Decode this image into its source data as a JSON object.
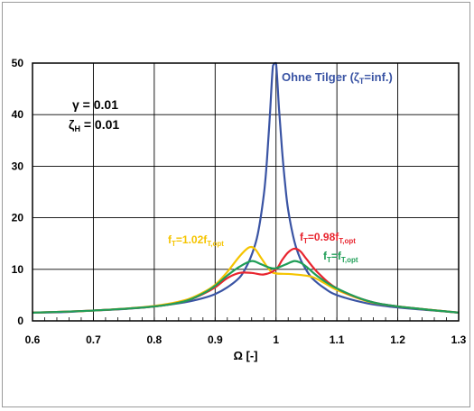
{
  "chart_data": {
    "type": "line",
    "title": "",
    "xlabel": "Ω [-]",
    "ylabel": "",
    "xlim": [
      0.6,
      1.3
    ],
    "ylim": [
      0,
      50
    ],
    "x_ticks": [
      "0.6",
      "0.7",
      "0.8",
      "0.9",
      "1",
      "1.1",
      "1.2",
      "1.3"
    ],
    "y_ticks": [
      "0",
      "10",
      "20",
      "30",
      "40",
      "50"
    ],
    "grid": true,
    "params": {
      "gamma": "γ = 0.01",
      "zeta": "ζ",
      "zeta_sub": "H",
      "zeta_val": " = 0.01"
    },
    "series": [
      {
        "name": "Ohne Tilger (ζT=inf.)",
        "label": {
          "main": "Ohne Tilger (ζ",
          "sub": "T",
          "tail": "=inf.)"
        },
        "color": "#3a54a4",
        "x": [
          0.6,
          0.65,
          0.7,
          0.75,
          0.8,
          0.85,
          0.88,
          0.9,
          0.92,
          0.94,
          0.95,
          0.96,
          0.97,
          0.98,
          0.985,
          0.99,
          0.995,
          1.0,
          1.005,
          1.01,
          1.015,
          1.02,
          1.03,
          1.04,
          1.05,
          1.06,
          1.08,
          1.1,
          1.15,
          1.2,
          1.25,
          1.3
        ],
        "y": [
          1.6,
          1.7,
          2.0,
          2.3,
          2.8,
          3.6,
          4.4,
          5.2,
          6.5,
          8.4,
          10.2,
          12.8,
          16.8,
          24.5,
          31.0,
          40.0,
          49.5,
          50.0,
          41.0,
          33.0,
          26.5,
          21.5,
          15.5,
          12.0,
          9.8,
          8.2,
          6.3,
          5.0,
          3.4,
          2.6,
          2.1,
          1.6
        ]
      },
      {
        "name": "fT=1.02fT,opt",
        "label": {
          "main": "f",
          "sub": "T",
          "tail": "=1.02f",
          "sub2": "T,opt"
        },
        "color": "#f5c400",
        "x": [
          0.6,
          0.7,
          0.8,
          0.85,
          0.88,
          0.9,
          0.92,
          0.94,
          0.955,
          0.965,
          0.975,
          0.99,
          1.0,
          1.02,
          1.04,
          1.06,
          1.08,
          1.1,
          1.15,
          1.2,
          1.3
        ],
        "y": [
          1.6,
          2.0,
          2.9,
          4.0,
          5.5,
          7.0,
          9.5,
          12.5,
          14.2,
          14.0,
          12.3,
          9.8,
          9.2,
          9.1,
          8.9,
          8.5,
          7.3,
          6.0,
          3.8,
          2.8,
          1.6
        ]
      },
      {
        "name": "fT=0.98fT,opt",
        "label": {
          "main": "f",
          "sub": "T",
          "tail": "=0.98f",
          "sub2": "T,opt"
        },
        "color": "#e8242e",
        "x": [
          0.6,
          0.7,
          0.8,
          0.85,
          0.88,
          0.9,
          0.92,
          0.94,
          0.96,
          0.98,
          1.0,
          1.01,
          1.02,
          1.03,
          1.04,
          1.05,
          1.07,
          1.1,
          1.15,
          1.2,
          1.3
        ],
        "y": [
          1.6,
          2.0,
          2.8,
          3.8,
          5.2,
          6.5,
          8.3,
          9.3,
          9.3,
          9.0,
          10.0,
          11.8,
          13.3,
          14.0,
          13.5,
          12.0,
          9.2,
          6.3,
          3.9,
          2.8,
          1.6
        ]
      },
      {
        "name": "fT=fT,opt",
        "label": {
          "main": "f",
          "sub": "T",
          "tail": "=f",
          "sub2": "T,opt"
        },
        "color": "#1f9e57",
        "x": [
          0.6,
          0.7,
          0.8,
          0.85,
          0.88,
          0.9,
          0.92,
          0.94,
          0.96,
          0.975,
          0.99,
          1.0,
          1.015,
          1.03,
          1.04,
          1.05,
          1.07,
          1.1,
          1.15,
          1.2,
          1.3
        ],
        "y": [
          1.6,
          2.0,
          2.8,
          3.8,
          5.3,
          6.8,
          8.8,
          10.5,
          11.6,
          11.0,
          10.3,
          10.2,
          10.9,
          11.6,
          11.3,
          10.5,
          8.5,
          6.3,
          3.9,
          2.8,
          1.6
        ]
      }
    ]
  }
}
